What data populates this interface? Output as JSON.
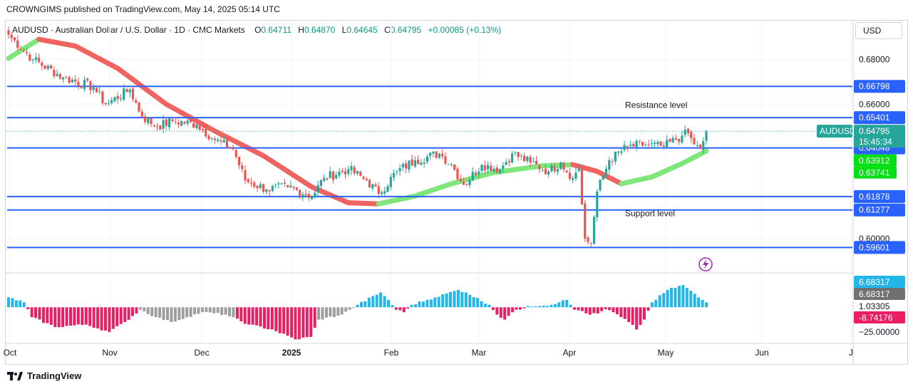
{
  "header": {
    "publisher": "CROWNGIMS published on TradingView.com, May 14, 2025 05:14 UTC",
    "symbol": "AUDUSD · Australian Dollar / U.S. Dollar · 1D · CMC Markets",
    "ohlc": [
      {
        "k": "O",
        "v": "0.64711"
      },
      {
        "k": "H",
        "v": "0.64870"
      },
      {
        "k": "L",
        "v": "0.64645"
      },
      {
        "k": "C",
        "v": "0.64795"
      }
    ],
    "change": "+0.00085 (+0.13%)",
    "currency": "USD"
  },
  "footer": {
    "brand": "TradingView"
  },
  "colors": {
    "up": "#26a69a",
    "down": "#ef5350",
    "hline": "#2962ff",
    "ma_up": "#7ee67b",
    "ma_down": "#ef6461",
    "macd_up": "#22b7e8",
    "macd_down": "#e91e63",
    "macd_grey": "#9e9e9e"
  },
  "chart_data": [
    {
      "type": "candlestick",
      "title": "AUDUSD · Australian Dollar / U.S. Dollar · 1D · CMC Markets",
      "ylim": [
        0.585,
        0.697
      ],
      "y_ticks": [
        "0.68000",
        "0.66000",
        "0.60000"
      ],
      "x_ticks": [
        "Oct",
        "Nov",
        "Dec",
        "2025",
        "Feb",
        "Mar",
        "Apr",
        "May",
        "Jun",
        "J"
      ],
      "grid": true,
      "last_price": {
        "label": "AUDUSD",
        "value": "0.64795",
        "countdown": "15:45:34"
      },
      "horizontal_levels": [
        {
          "value": 0.66798,
          "label": "0.66798"
        },
        {
          "value": 0.65401,
          "label": "0.65401"
        },
        {
          "value": 0.64048,
          "label": "0.64048"
        },
        {
          "value": 0.61878,
          "label": "0.61878"
        },
        {
          "value": 0.61277,
          "label": "0.61277"
        },
        {
          "value": 0.59601,
          "label": "0.59601"
        }
      ],
      "ma_labels": [
        {
          "value": 0.63912,
          "label": "0.63912"
        },
        {
          "value": 0.63741,
          "label": "0.63741"
        }
      ],
      "annotations": [
        {
          "text": "Resistance level",
          "price": 0.66
        },
        {
          "text": "Support level",
          "price": 0.6115
        }
      ],
      "anchors": [
        {
          "i": 0,
          "c": 0.691
        },
        {
          "i": 8,
          "c": 0.68
        },
        {
          "i": 18,
          "c": 0.672
        },
        {
          "i": 28,
          "c": 0.6675
        },
        {
          "i": 32,
          "c": 0.66
        },
        {
          "i": 40,
          "c": 0.6665
        },
        {
          "i": 44,
          "c": 0.6545
        },
        {
          "i": 49,
          "c": 0.65
        },
        {
          "i": 54,
          "c": 0.6525
        },
        {
          "i": 62,
          "c": 0.651
        },
        {
          "i": 68,
          "c": 0.644
        },
        {
          "i": 74,
          "c": 0.64
        },
        {
          "i": 78,
          "c": 0.626
        },
        {
          "i": 85,
          "c": 0.622
        },
        {
          "i": 92,
          "c": 0.623
        },
        {
          "i": 100,
          "c": 0.619
        },
        {
          "i": 104,
          "c": 0.627
        },
        {
          "i": 112,
          "c": 0.631
        },
        {
          "i": 118,
          "c": 0.626
        },
        {
          "i": 122,
          "c": 0.62
        },
        {
          "i": 128,
          "c": 0.63
        },
        {
          "i": 134,
          "c": 0.635
        },
        {
          "i": 142,
          "c": 0.638
        },
        {
          "i": 146,
          "c": 0.633
        },
        {
          "i": 150,
          "c": 0.624
        },
        {
          "i": 156,
          "c": 0.633
        },
        {
          "i": 162,
          "c": 0.631
        },
        {
          "i": 166,
          "c": 0.638
        },
        {
          "i": 172,
          "c": 0.634
        },
        {
          "i": 178,
          "c": 0.63
        },
        {
          "i": 182,
          "c": 0.634
        },
        {
          "i": 186,
          "c": 0.627
        },
        {
          "i": 188,
          "c": 0.631
        },
        {
          "i": 190,
          "c": 0.6
        },
        {
          "i": 192,
          "c": 0.598
        },
        {
          "i": 194,
          "c": 0.621
        },
        {
          "i": 198,
          "c": 0.635
        },
        {
          "i": 204,
          "c": 0.641
        },
        {
          "i": 210,
          "c": 0.642
        },
        {
          "i": 216,
          "c": 0.641
        },
        {
          "i": 222,
          "c": 0.646
        },
        {
          "i": 224,
          "c": 0.647
        },
        {
          "i": 226,
          "c": 0.642
        },
        {
          "i": 228,
          "c": 0.64
        },
        {
          "i": 230,
          "c": 0.6479
        }
      ],
      "moving_average": [
        {
          "i": 0,
          "v": 0.6805
        },
        {
          "i": 10,
          "v": 0.689
        },
        {
          "i": 22,
          "v": 0.686
        },
        {
          "i": 36,
          "v": 0.676
        },
        {
          "i": 52,
          "v": 0.66
        },
        {
          "i": 68,
          "v": 0.648
        },
        {
          "i": 84,
          "v": 0.637
        },
        {
          "i": 100,
          "v": 0.623
        },
        {
          "i": 112,
          "v": 0.616
        },
        {
          "i": 122,
          "v": 0.6155
        },
        {
          "i": 134,
          "v": 0.619
        },
        {
          "i": 146,
          "v": 0.6245
        },
        {
          "i": 160,
          "v": 0.6295
        },
        {
          "i": 176,
          "v": 0.6325
        },
        {
          "i": 186,
          "v": 0.633
        },
        {
          "i": 194,
          "v": 0.63
        },
        {
          "i": 202,
          "v": 0.6245
        },
        {
          "i": 212,
          "v": 0.6275
        },
        {
          "i": 222,
          "v": 0.6335
        },
        {
          "i": 230,
          "v": 0.6391
        }
      ],
      "n_bars": 231
    },
    {
      "type": "histogram",
      "title": "",
      "ylim": [
        -25,
        6.683
      ],
      "y_ticks": [
        "1.03305",
        "−25.00000"
      ],
      "value_labels": [
        {
          "value": 6.68317,
          "label": "6.68317",
          "style": "up"
        },
        {
          "value": 6.68317,
          "label": "6.68317",
          "style": "grey"
        },
        {
          "value": -8.74176,
          "label": "-8.74176",
          "style": "down"
        }
      ],
      "anchors": [
        {
          "i": 0,
          "v": 4
        },
        {
          "i": 4,
          "v": 2
        },
        {
          "i": 6,
          "v": -4
        },
        {
          "i": 12,
          "v": -8
        },
        {
          "i": 20,
          "v": -7
        },
        {
          "i": 26,
          "v": -10
        },
        {
          "i": 30,
          "v": -6
        },
        {
          "i": 34,
          "v": -1
        },
        {
          "i": 38,
          "v": -4
        },
        {
          "i": 42,
          "v": -6
        },
        {
          "i": 46,
          "v": -4
        },
        {
          "i": 50,
          "v": -2
        },
        {
          "i": 56,
          "v": -3
        },
        {
          "i": 62,
          "v": -7
        },
        {
          "i": 68,
          "v": -9
        },
        {
          "i": 74,
          "v": -13
        },
        {
          "i": 78,
          "v": -12
        },
        {
          "i": 80,
          "v": -5
        },
        {
          "i": 86,
          "v": -3
        },
        {
          "i": 88,
          "v": -1
        },
        {
          "i": 90,
          "v": 1
        },
        {
          "i": 96,
          "v": 6
        },
        {
          "i": 98,
          "v": 3
        },
        {
          "i": 100,
          "v": -1
        },
        {
          "i": 102,
          "v": -2
        },
        {
          "i": 104,
          "v": 1
        },
        {
          "i": 110,
          "v": 4
        },
        {
          "i": 116,
          "v": 7
        },
        {
          "i": 118,
          "v": 6
        },
        {
          "i": 124,
          "v": 1
        },
        {
          "i": 126,
          "v": -3
        },
        {
          "i": 128,
          "v": -5
        },
        {
          "i": 130,
          "v": -2
        },
        {
          "i": 134,
          "v": 0.5
        },
        {
          "i": 140,
          "v": 1
        },
        {
          "i": 142,
          "v": 2
        },
        {
          "i": 144,
          "v": 3
        },
        {
          "i": 146,
          "v": -1
        },
        {
          "i": 148,
          "v": -1.5
        },
        {
          "i": 150,
          "v": -3
        },
        {
          "i": 152,
          "v": -2.5
        },
        {
          "i": 154,
          "v": -0.8
        },
        {
          "i": 156,
          "v": -2
        },
        {
          "i": 158,
          "v": -4
        },
        {
          "i": 160,
          "v": -6
        },
        {
          "i": 162,
          "v": -9
        },
        {
          "i": 164,
          "v": -5
        },
        {
          "i": 166,
          "v": 2
        },
        {
          "i": 170,
          "v": 7
        },
        {
          "i": 174,
          "v": 9
        },
        {
          "i": 178,
          "v": 4
        },
        {
          "i": 180,
          "v": 2
        }
      ],
      "n_bars": 181
    }
  ]
}
